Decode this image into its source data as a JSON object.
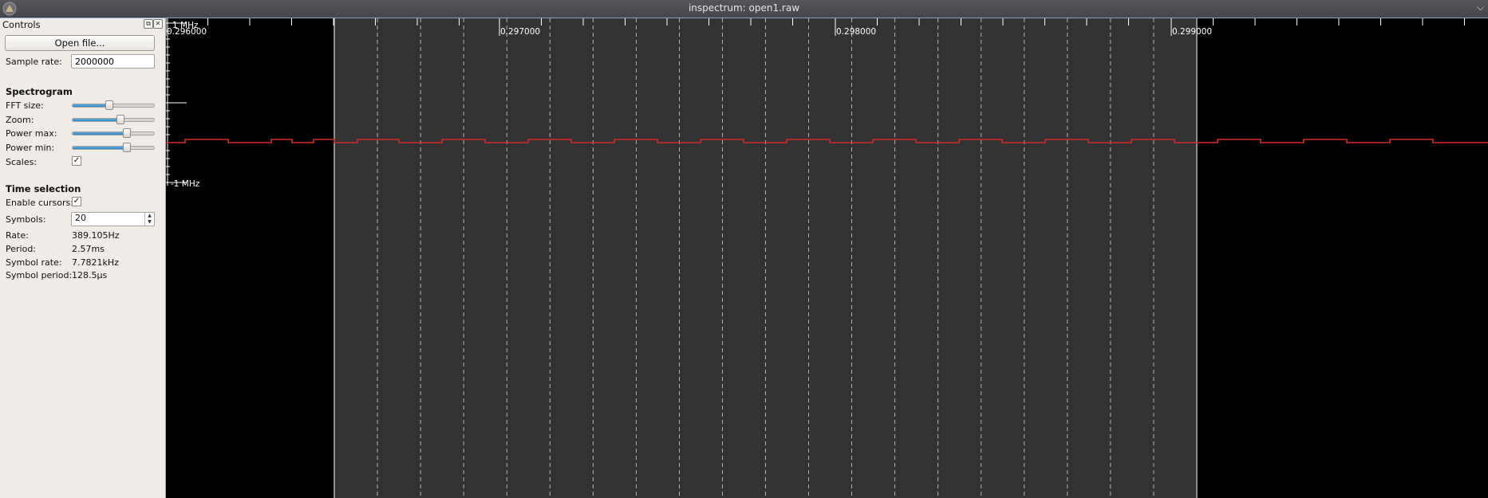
{
  "window": {
    "title": "inspectrum: open1.raw",
    "menu_glyph": "⌵"
  },
  "controls": {
    "title": "Controls",
    "open_file_label": "Open file...",
    "sample_rate_label": "Sample rate:",
    "sample_rate_value": "2000000",
    "spectrogram_heading": "Spectrogram",
    "fft_size": {
      "label": "FFT size:",
      "level": 0.45
    },
    "zoom": {
      "label": "Zoom:",
      "level": 0.59
    },
    "power_max": {
      "label": "Power max:",
      "level": 0.67
    },
    "power_min": {
      "label": "Power min:",
      "level": 0.67
    },
    "scales": {
      "label": "Scales:",
      "checked": true
    },
    "time_selection_heading": "Time selection",
    "enable_cursors": {
      "label": "Enable cursors:",
      "checked": true
    },
    "symbols": {
      "label": "Symbols:",
      "value": "20"
    },
    "rate": {
      "label": "Rate:",
      "value": "389.105Hz"
    },
    "period": {
      "label": "Period:",
      "value": "2.57ms"
    },
    "symbol_rate": {
      "label": "Symbol rate:",
      "value": "7.7821kHz"
    },
    "symbol_period": {
      "label": "Symbol period:",
      "value": "128.5µs"
    }
  },
  "plot": {
    "freq_top_label": "1 MHz",
    "freq_bottom_label": "-1 MHz",
    "time_ticks": [
      "0.296000",
      "0.297000",
      "0.298000",
      "0.299000"
    ],
    "trace_color": "#d42a2a",
    "selection_color": "#333333",
    "symbol_count": 20
  }
}
